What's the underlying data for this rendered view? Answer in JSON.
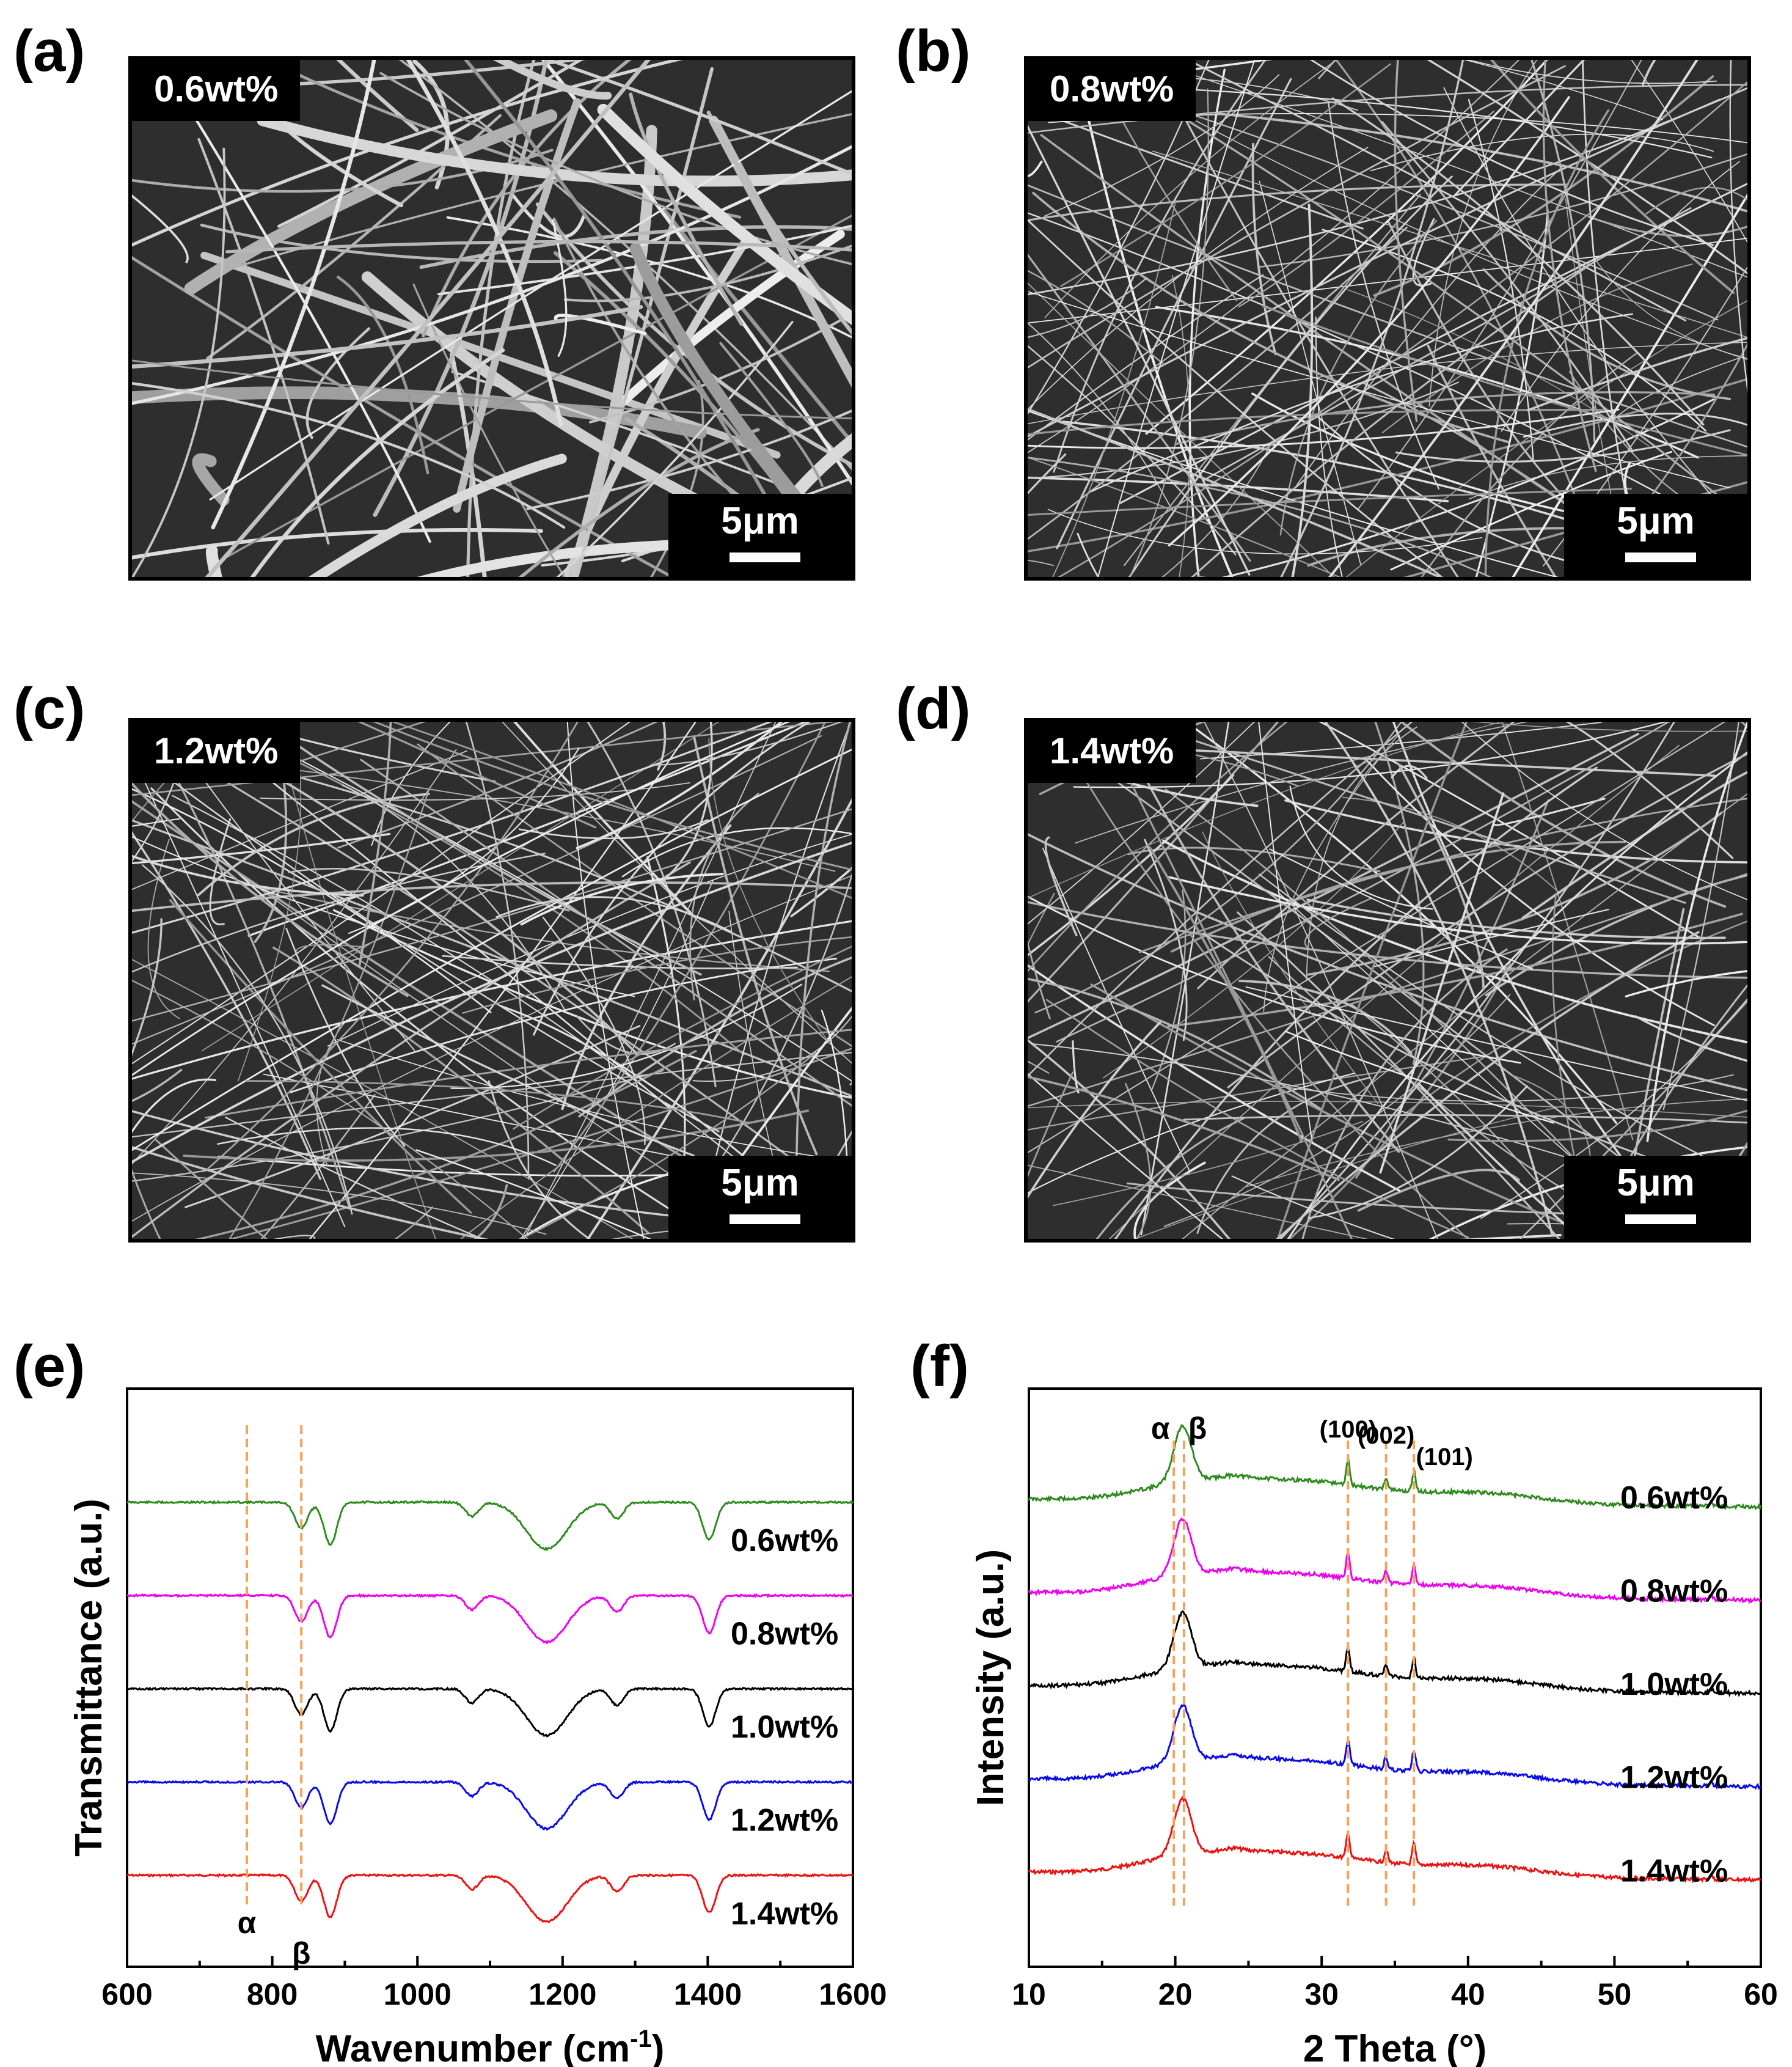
{
  "panels": {
    "a": {
      "letter": "(a)",
      "label": "0.6wt%",
      "scale": "5μm"
    },
    "b": {
      "letter": "(b)",
      "label": "0.8wt%",
      "scale": "5μm"
    },
    "c": {
      "letter": "(c)",
      "label": "1.2wt%",
      "scale": "5μm"
    },
    "d": {
      "letter": "(d)",
      "label": "1.4wt%",
      "scale": "5μm"
    },
    "e": {
      "letter": "(e)"
    },
    "f": {
      "letter": "(f)"
    }
  },
  "colors": {
    "green": "#2e8b1e",
    "magenta": "#f000f0",
    "black": "#000000",
    "blue": "#0a0af0",
    "red": "#f01010",
    "guide": "#f5a35a"
  },
  "chart_data": [
    {
      "type": "line",
      "id": "e",
      "xlabel": "Wavenumber (cm",
      "xlabel_sup": "-1",
      "xlabel_end": ")",
      "ylabel": "Transmittance (a.u.)",
      "xlim": [
        600,
        1600
      ],
      "xticks": [
        "600",
        "800",
        "1000",
        "1200",
        "1400",
        "1600"
      ],
      "guides": [
        {
          "x": 765,
          "label": "α"
        },
        {
          "x": 840,
          "label": "β"
        }
      ],
      "series": [
        {
          "name": "0.6wt%",
          "color": "green",
          "offset": 4
        },
        {
          "name": "0.8wt%",
          "color": "magenta",
          "offset": 3
        },
        {
          "name": "1.0wt%",
          "color": "black",
          "offset": 2
        },
        {
          "name": "1.2wt%",
          "color": "blue",
          "offset": 1
        },
        {
          "name": "1.4wt%",
          "color": "red",
          "offset": 0
        }
      ],
      "dips": [
        {
          "x": 840,
          "depth": 0.55
        },
        {
          "x": 880,
          "depth": 0.9
        },
        {
          "x": 1075,
          "depth": 0.3
        },
        {
          "x": 1178,
          "depth": 1.0
        },
        {
          "x": 1275,
          "depth": 0.35
        },
        {
          "x": 1402,
          "depth": 0.8
        }
      ]
    },
    {
      "type": "line",
      "id": "f",
      "xlabel": "2 Theta (°)",
      "ylabel": "Intensity (a.u.)",
      "xlim": [
        10,
        60
      ],
      "xticks": [
        "10",
        "20",
        "30",
        "40",
        "50",
        "60"
      ],
      "guides": [
        {
          "x": 19.9,
          "label": "α"
        },
        {
          "x": 20.6,
          "label": "β"
        },
        {
          "x": 31.8,
          "label": "(100)"
        },
        {
          "x": 34.4,
          "label": "(002)"
        },
        {
          "x": 36.3,
          "label": "(101)"
        }
      ],
      "series": [
        {
          "name": "0.6wt%",
          "color": "green",
          "offset": 4
        },
        {
          "name": "0.8wt%",
          "color": "magenta",
          "offset": 3
        },
        {
          "name": "1.0wt%",
          "color": "black",
          "offset": 2
        },
        {
          "name": "1.2wt%",
          "color": "blue",
          "offset": 1
        },
        {
          "name": "1.4wt%",
          "color": "red",
          "offset": 0
        }
      ],
      "peaks": [
        {
          "x": 20.5,
          "height": 0.55
        },
        {
          "x": 31.8,
          "height": 0.25
        },
        {
          "x": 34.4,
          "height": 0.12
        },
        {
          "x": 36.3,
          "height": 0.2
        },
        {
          "x": 56.6,
          "height": 0.04
        }
      ]
    }
  ]
}
